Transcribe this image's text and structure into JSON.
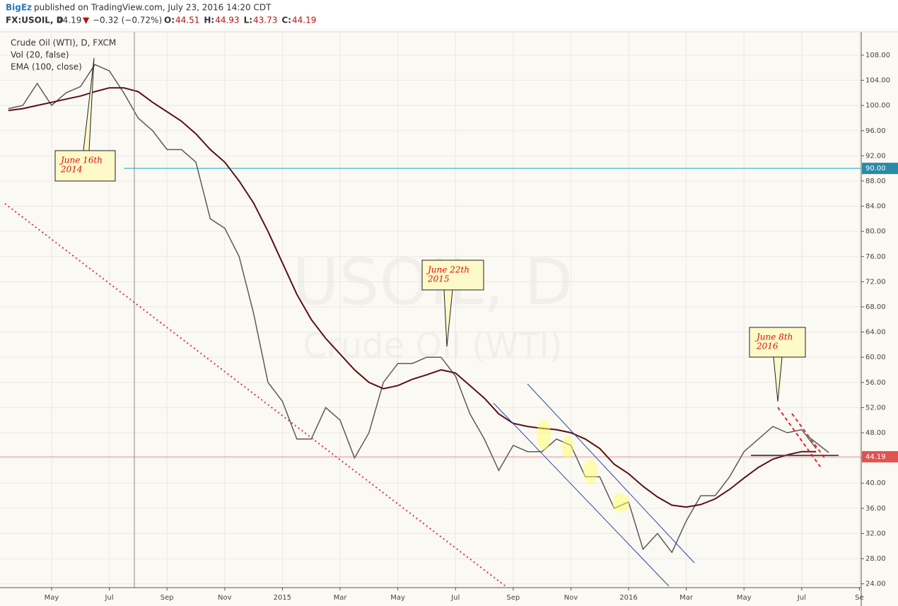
{
  "header": {
    "author": "BigEz",
    "published": "published on TradingView.com, July 23, 2016 14:20 CDT",
    "symbol": "FX:USOIL, D",
    "last": "44.19",
    "arrow": "▼",
    "change": "−0.32 (−0.72%)",
    "ohlc": [
      {
        "key": "O:",
        "val": "44.51"
      },
      {
        "key": "H:",
        "val": "44.93"
      },
      {
        "key": "L:",
        "val": "43.73"
      },
      {
        "key": "C:",
        "val": "44.19"
      }
    ]
  },
  "chart_data": {
    "type": "line",
    "legend": [
      "Crude Oil (WTI), D, FXCM",
      "Vol (20, false)",
      "EMA (100, close)"
    ],
    "watermark": [
      "USOIL, D",
      "Crude Oil (WTI)"
    ],
    "categories": [
      null,
      null,
      null,
      "May",
      null,
      null,
      null,
      "Jul",
      null,
      null,
      null,
      "Sep",
      null,
      null,
      null,
      "Nov",
      null,
      null,
      null,
      "2015",
      null,
      null,
      null,
      "Mar",
      null,
      null,
      null,
      "May",
      null,
      null,
      null,
      "Jul",
      null,
      null,
      null,
      "Sep",
      null,
      null,
      null,
      "Nov",
      null,
      null,
      null,
      "2016",
      null,
      null,
      null,
      "Mar",
      null,
      null,
      null,
      "May",
      null,
      null,
      null,
      "Jul",
      null,
      null,
      null,
      "Se"
    ],
    "series": [
      {
        "name": "Crude Oil (WTI), D, FXCM",
        "color": "#5a5a5a",
        "values": [
          99.5,
          100,
          103.5,
          100,
          102,
          103,
          106.5,
          105.5,
          102,
          98,
          96,
          93,
          93,
          91,
          82,
          80.5,
          76,
          67,
          56,
          53,
          47,
          47,
          52,
          50,
          44,
          48,
          56,
          59,
          59,
          60,
          60,
          57,
          51,
          47,
          42,
          46,
          45,
          45,
          47,
          46,
          41,
          41,
          36,
          37,
          29.5,
          32,
          29,
          34,
          38,
          38,
          41,
          45,
          47,
          49,
          48,
          48.5,
          45.5,
          null,
          null,
          null
        ]
      },
      {
        "name": "EMA (100, close)",
        "color": "#5c1010",
        "values": [
          99.2,
          99.5,
          100,
          100.5,
          101,
          101.5,
          102.2,
          102.8,
          102.8,
          102.2,
          100.5,
          99,
          97.5,
          95.5,
          93,
          91,
          88,
          84.5,
          80,
          75,
          70,
          66,
          63,
          60.5,
          58,
          56,
          55,
          55.5,
          56.5,
          57.2,
          58,
          57.5,
          55.5,
          53.5,
          51,
          49.5,
          49,
          48.7,
          48.5,
          48,
          47,
          45.5,
          43,
          41.5,
          39.5,
          37.8,
          36.5,
          36.2,
          36.6,
          37.5,
          39,
          40.8,
          42.5,
          43.8,
          44.5,
          45,
          45,
          null,
          null,
          null
        ]
      }
    ],
    "ylim": [
      23.4,
      111.7
    ],
    "yticks": [
      {
        "value": 24,
        "label": "24.00"
      },
      {
        "value": 28,
        "label": "28.00"
      },
      {
        "value": 32,
        "label": "32.00"
      },
      {
        "value": 36,
        "label": "36.00"
      },
      {
        "value": 40,
        "label": "40.00"
      },
      {
        "value": 44,
        "label": "44.00"
      },
      {
        "value": 48,
        "label": "48.00"
      },
      {
        "value": 52,
        "label": "52.00"
      },
      {
        "value": 56,
        "label": "56.00"
      },
      {
        "value": 60,
        "label": "60.00"
      },
      {
        "value": 64,
        "label": "64.00"
      },
      {
        "value": 68,
        "label": "68.00"
      },
      {
        "value": 72,
        "label": "72.00"
      },
      {
        "value": 76,
        "label": "76.00"
      },
      {
        "value": 80,
        "label": "80.00"
      },
      {
        "value": 84,
        "label": "84.00"
      },
      {
        "value": 88,
        "label": "88.00"
      },
      {
        "value": 92,
        "label": "92.00"
      },
      {
        "value": 96,
        "label": "96.00"
      },
      {
        "value": 100,
        "label": "100.00"
      },
      {
        "value": 104,
        "label": "104.00"
      },
      {
        "value": 108,
        "label": "108.00"
      }
    ],
    "hlines": [
      {
        "value": 90,
        "label": "90.00",
        "color": "#5bc0d6"
      },
      {
        "value": 44.19,
        "label": "44.19",
        "color": "#e29a9a"
      }
    ],
    "grid": true,
    "annotations": [
      {
        "lines": [
          "June 16th",
          "2014"
        ]
      },
      {
        "lines": [
          "June 22th",
          "2015"
        ]
      },
      {
        "lines": [
          "June 8th",
          "2016"
        ]
      }
    ]
  }
}
